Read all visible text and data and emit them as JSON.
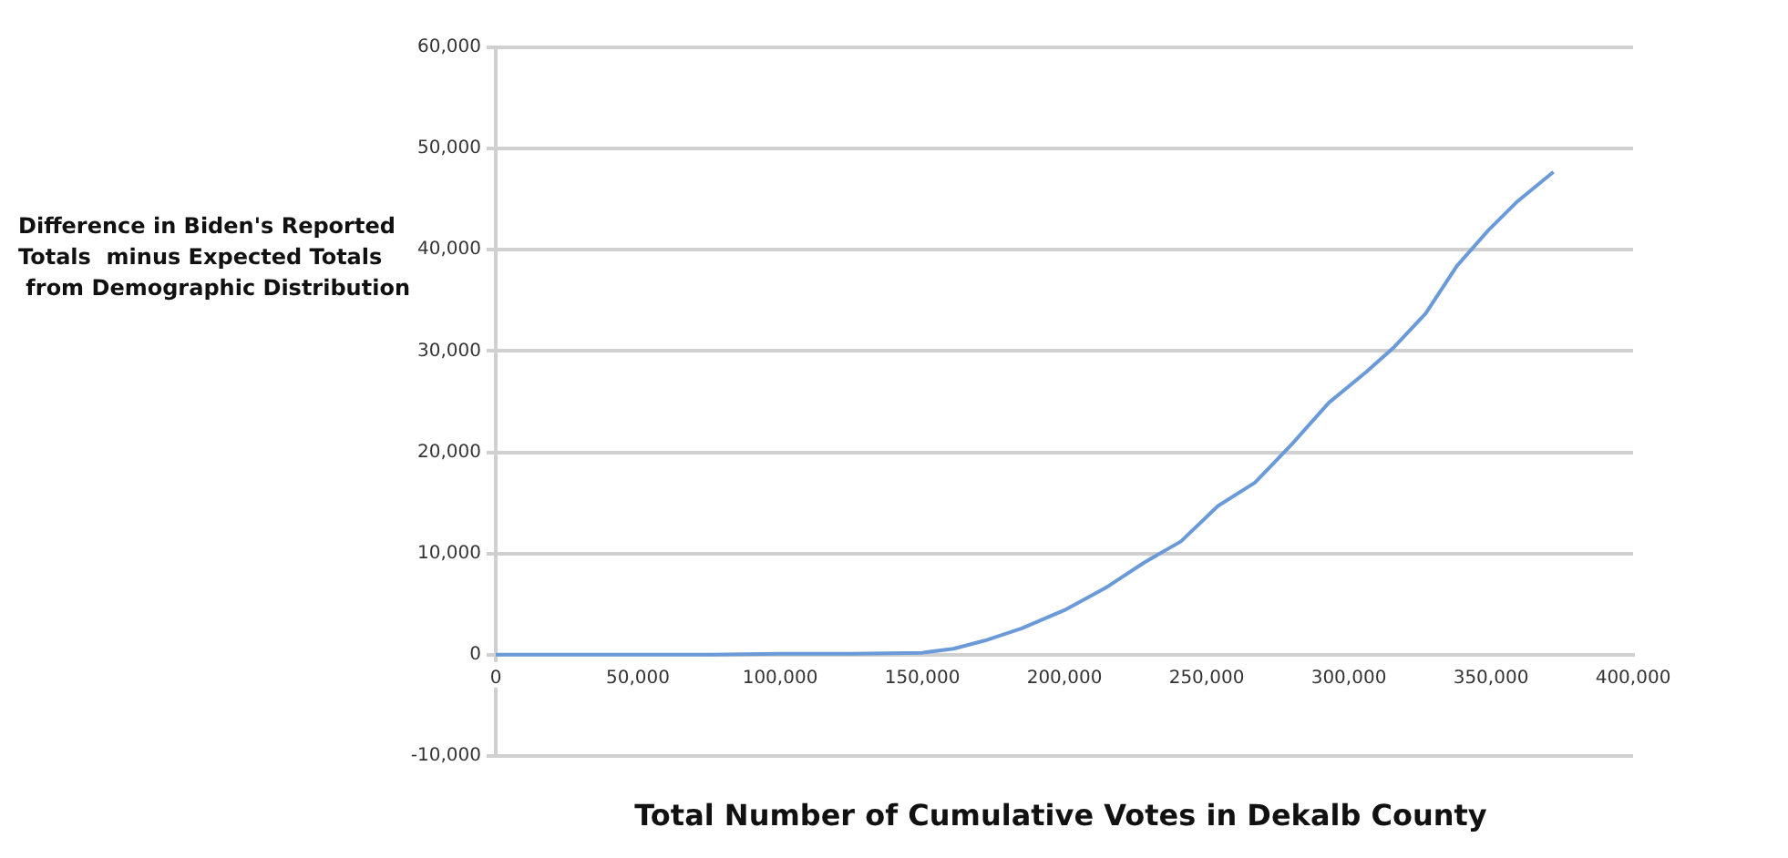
{
  "chart_data": {
    "type": "line",
    "xlabel": "Total Number of Cumulative Votes in Dekalb County",
    "ylabel": "Difference in Biden's Reported\nTotals  minus Expected Totals\n from Demographic Distribution",
    "series": [
      {
        "color": "#6a9ad8",
        "x": [
          0,
          25000,
          50000,
          75000,
          100000,
          125000,
          150000,
          161000,
          172000,
          185000,
          200000,
          215000,
          228000,
          241000,
          254000,
          267000,
          280000,
          293000,
          306000,
          316000,
          327000,
          338000,
          349000,
          359000,
          372000
        ],
        "values": [
          0,
          0,
          0,
          0,
          100,
          100,
          200,
          600,
          1400,
          2600,
          4400,
          6700,
          9100,
          11200,
          14700,
          17000,
          20800,
          24900,
          27900,
          30400,
          33700,
          38400,
          41900,
          44700,
          47700
        ]
      }
    ],
    "xlim": [
      0,
      400000
    ],
    "xticks": [
      0,
      {
        "value": 50000,
        "label": "50,000"
      },
      {
        "value": 100000,
        "label": "100,000"
      },
      {
        "value": 150000,
        "label": "150,000"
      },
      {
        "value": 200000,
        "label": "200,000"
      },
      {
        "value": 250000,
        "label": "250,000"
      },
      {
        "value": 300000,
        "label": "300,000"
      },
      {
        "value": 350000,
        "label": "350,000"
      },
      {
        "value": 400000,
        "label": "400,000"
      }
    ],
    "ylim": [
      -10000,
      60000
    ],
    "yticks": [
      {
        "value": -10000,
        "label": "-10,000"
      },
      0,
      {
        "value": 10000,
        "label": "10,000"
      },
      {
        "value": 20000,
        "label": "20,000"
      },
      {
        "value": 30000,
        "label": "30,000"
      },
      {
        "value": 40000,
        "label": "40,000"
      },
      {
        "value": 50000,
        "label": "50,000"
      },
      {
        "value": 60000,
        "label": "60,000"
      }
    ],
    "grid": "y",
    "legend": false,
    "marker": "none",
    "line_style": "solid"
  }
}
